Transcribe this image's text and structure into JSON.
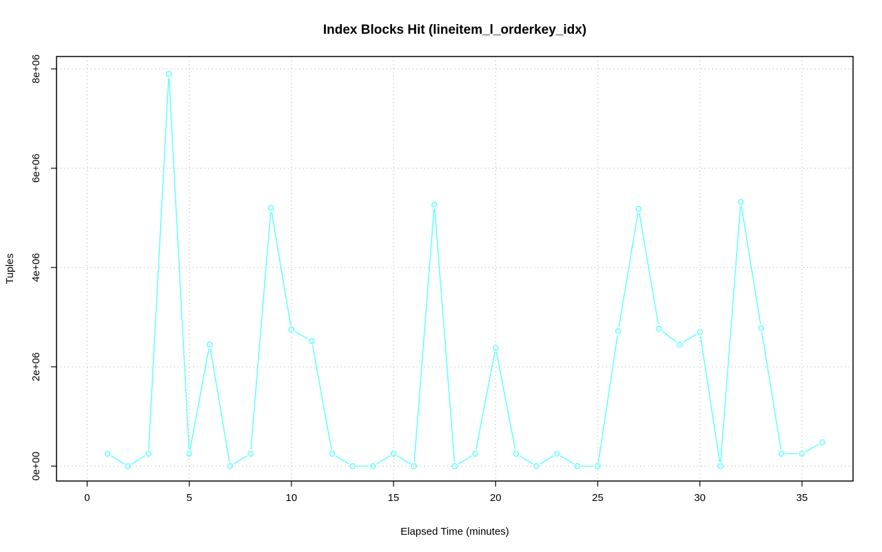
{
  "chart_data": {
    "type": "line",
    "title": "Index Blocks Hit (lineitem_l_orderkey_idx)",
    "xlabel": "Elapsed Time (minutes)",
    "ylabel": "Tuples",
    "xlim": [
      -1.5,
      37.5
    ],
    "ylim": [
      -300000,
      8250000
    ],
    "xticks": [
      0,
      5,
      10,
      15,
      20,
      25,
      30,
      35
    ],
    "xtick_labels": [
      "0",
      "5",
      "10",
      "15",
      "20",
      "25",
      "30",
      "35"
    ],
    "yticks": [
      0,
      2000000,
      4000000,
      6000000,
      8000000
    ],
    "ytick_labels": [
      "0e+00",
      "2e+06",
      "4e+06",
      "6e+06",
      "8e+06"
    ],
    "grid": true,
    "series": [
      {
        "color": "#66ffff",
        "marker": "open-circle",
        "x": [
          1,
          2,
          3,
          4,
          5,
          6,
          7,
          8,
          9,
          10,
          11,
          12,
          13,
          14,
          15,
          16,
          17,
          18,
          19,
          20,
          21,
          22,
          23,
          24,
          25,
          26,
          27,
          28,
          29,
          30,
          31,
          32,
          33,
          34,
          35,
          36
        ],
        "values": [
          250000,
          0,
          250000,
          7900000,
          250000,
          2450000,
          0,
          250000,
          5200000,
          2750000,
          2520000,
          250000,
          0,
          0,
          250000,
          0,
          5270000,
          0,
          250000,
          2380000,
          250000,
          0,
          250000,
          0,
          0,
          2720000,
          5180000,
          2770000,
          2450000,
          2700000,
          0,
          5320000,
          2780000,
          250000,
          250000,
          480000
        ]
      }
    ]
  }
}
